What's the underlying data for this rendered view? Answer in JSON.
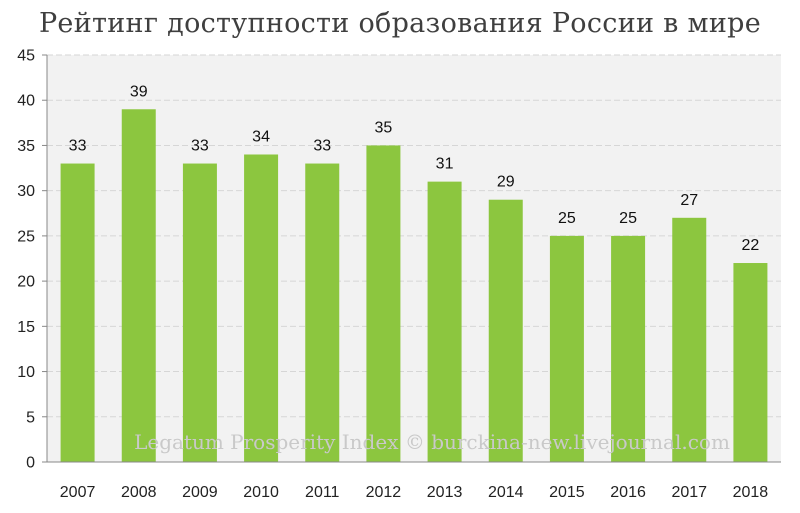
{
  "chart_data": {
    "type": "bar",
    "title": "Рейтинг доступности образования России в мире",
    "categories": [
      "2007",
      "2008",
      "2009",
      "2010",
      "2011",
      "2012",
      "2013",
      "2014",
      "2015",
      "2016",
      "2017",
      "2018"
    ],
    "values": [
      33,
      39,
      33,
      34,
      33,
      35,
      31,
      29,
      25,
      25,
      27,
      22
    ],
    "ylim": [
      0,
      45
    ],
    "yticks": [
      "0",
      "5",
      "10",
      "15",
      "20",
      "25",
      "30",
      "35",
      "40",
      "45"
    ],
    "grid": true,
    "bar_color": "#8cc63f",
    "plot_background": "#f2f2f2",
    "watermark": "Legatum Prosperity Index © burckina-new.livejournal.com"
  }
}
